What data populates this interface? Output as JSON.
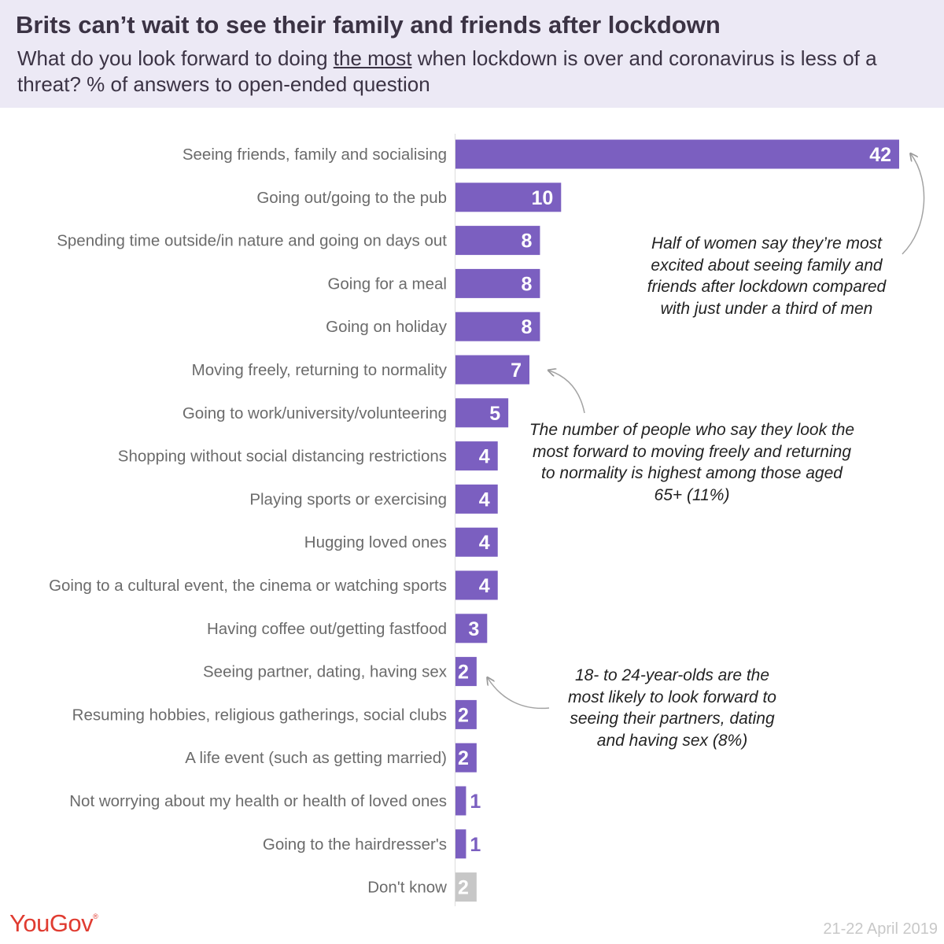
{
  "title": "Brits can’t wait to see their family and friends after lockdown",
  "subtitle_before": "What do you look forward to doing ",
  "subtitle_underlined": "the most",
  "subtitle_after": " when lockdown is over and coronavirus is less of a threat? % of answers to open-ended question",
  "annotations": {
    "women": "Half of women say they’re most excited about seeing family and friends after lockdown compared with just under a third of men",
    "normality": "The number of people who say they look the most forward to moving freely and returning to normality is highest among those aged 65+ (11%)",
    "partners": "18- to 24-year-olds are the most likely to look forward to seeing their partners, dating and having sex (8%)"
  },
  "brand": {
    "logo": "YouGov",
    "logo_mark": "®",
    "date": "21-22 April 2019"
  },
  "colors": {
    "bar": "#7b5fc0",
    "bar_dont_know": "#c7c7c7",
    "label": "#6b6b6b",
    "value_inside": "#ffffff",
    "value_outside": "#7b5fc0",
    "header_bg": "#ece9f5",
    "logo": "#e03c31"
  },
  "chart_data": {
    "type": "bar",
    "orientation": "horizontal",
    "categories": [
      "Seeing friends, family and socialising",
      "Going out/going to the pub",
      "Spending time outside/in nature and going on days out",
      "Going for a meal",
      "Going on holiday",
      "Moving freely, returning to normality",
      "Going to work/university/volunteering",
      "Shopping without social distancing restrictions",
      "Playing sports or exercising",
      "Hugging loved ones",
      "Going to a cultural event, the cinema or watching sports",
      "Having coffee out/getting fastfood",
      "Seeing partner, dating, having sex",
      "Resuming hobbies, religious gatherings, social clubs",
      "A life event (such as getting married)",
      "Not worrying about my health or health of loved ones",
      "Going to the hairdresser's",
      "Don't know"
    ],
    "values": [
      42,
      10,
      8,
      8,
      8,
      7,
      5,
      4,
      4,
      4,
      4,
      3,
      2,
      2,
      2,
      1,
      1,
      2
    ],
    "highlight_gray": [
      "Don't know"
    ],
    "xlim": [
      0,
      42
    ]
  }
}
